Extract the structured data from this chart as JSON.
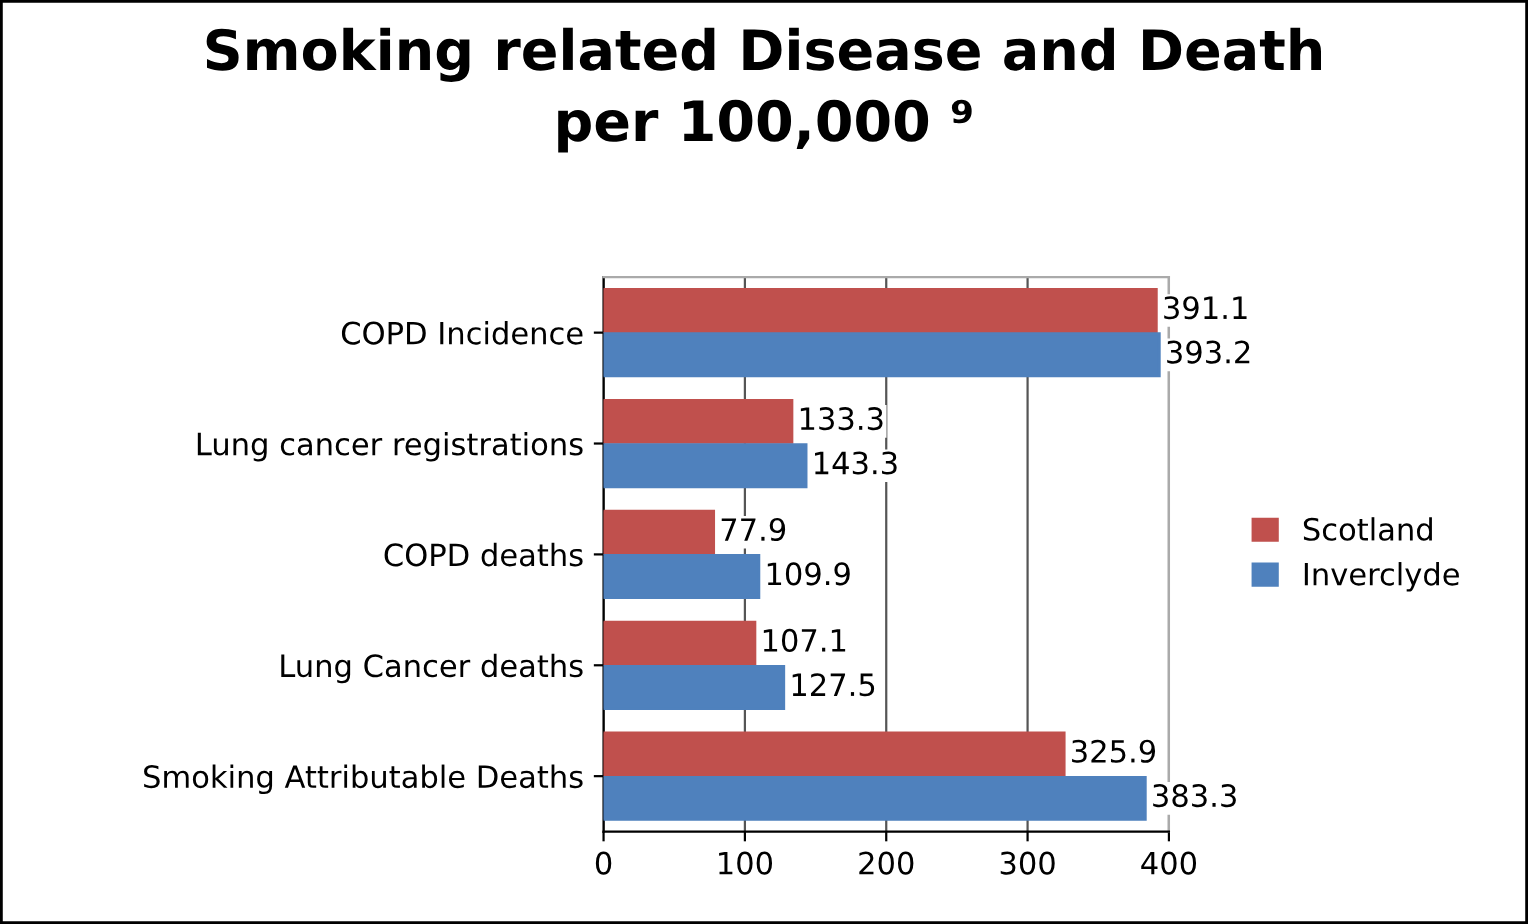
{
  "chart_data": {
    "type": "bar",
    "orientation": "horizontal",
    "title": "Smoking related Disease and Death\nper 100,000 ⁹",
    "categories": [
      "COPD Incidence",
      "Lung cancer registrations",
      "COPD deaths",
      "Lung Cancer deaths",
      "Smoking Attributable Deaths"
    ],
    "series": [
      {
        "name": "Scotland",
        "color": "#c0504d",
        "values": [
          391.1,
          133.3,
          77.9,
          107.1,
          325.9
        ]
      },
      {
        "name": "Inverclyde",
        "color": "#4f81bd",
        "values": [
          393.2,
          143.3,
          109.9,
          127.5,
          383.3
        ]
      }
    ],
    "xlim": [
      0,
      400
    ],
    "xticks": [
      0,
      100,
      200,
      300,
      400
    ],
    "grid": "x",
    "legend": "right",
    "data_labels": true
  }
}
